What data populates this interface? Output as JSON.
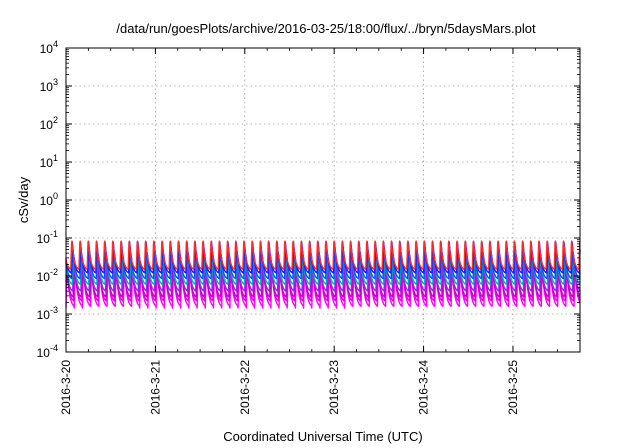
{
  "chart_data": {
    "type": "line",
    "title": "/data/run/goesPlots/archive/2016-03-25/18:00/flux/../bryn/5daysMars.plot",
    "xlabel": "Coordinated Universal Time (UTC)",
    "ylabel": "cSv/day",
    "y_scale": "log",
    "ylim": [
      0.0001,
      10000
    ],
    "y_ticks": [
      {
        "value": 0.0001,
        "base": "10",
        "exp": "-4"
      },
      {
        "value": 0.001,
        "base": "10",
        "exp": "-3"
      },
      {
        "value": 0.01,
        "base": "10",
        "exp": "-2"
      },
      {
        "value": 0.1,
        "base": "10",
        "exp": "-1"
      },
      {
        "value": 1,
        "base": "10",
        "exp": "0"
      },
      {
        "value": 10,
        "base": "10",
        "exp": "1"
      },
      {
        "value": 100,
        "base": "10",
        "exp": "2"
      },
      {
        "value": 1000,
        "base": "10",
        "exp": "3"
      },
      {
        "value": 10000,
        "base": "10",
        "exp": "4"
      }
    ],
    "x_start": "2016-03-20T00:00",
    "x_end": "2016-03-25T18:00",
    "x_ticks": [
      "2016-3-20",
      "2016-3-21",
      "2016-3-22",
      "2016-3-23",
      "2016-3-24",
      "2016-3-25"
    ],
    "grid": true,
    "pattern": {
      "period_hours": 2.2,
      "description": "periodic sawtooth: sharp rise then decay, repeating"
    },
    "series": [
      {
        "color": "#ff00ff",
        "peak": 0.02,
        "trough": 0.0016
      },
      {
        "color": "#e600e6",
        "peak": 0.025,
        "trough": 0.0022
      },
      {
        "color": "#c800c8",
        "peak": 0.03,
        "trough": 0.0028
      },
      {
        "color": "#8a2be2",
        "peak": 0.04,
        "trough": 0.004
      },
      {
        "color": "#00b3b3",
        "peak": 0.05,
        "trough": 0.006
      },
      {
        "color": "#0055ff",
        "peak": 0.06,
        "trough": 0.0085
      },
      {
        "color": "#1a1aff",
        "peak": 0.085,
        "trough": 0.012
      },
      {
        "color": "#ff2a2a",
        "peak": 0.1,
        "trough": 0.015
      }
    ],
    "colors": {
      "grid": "#a0a0a0",
      "axis": "#000000"
    }
  }
}
